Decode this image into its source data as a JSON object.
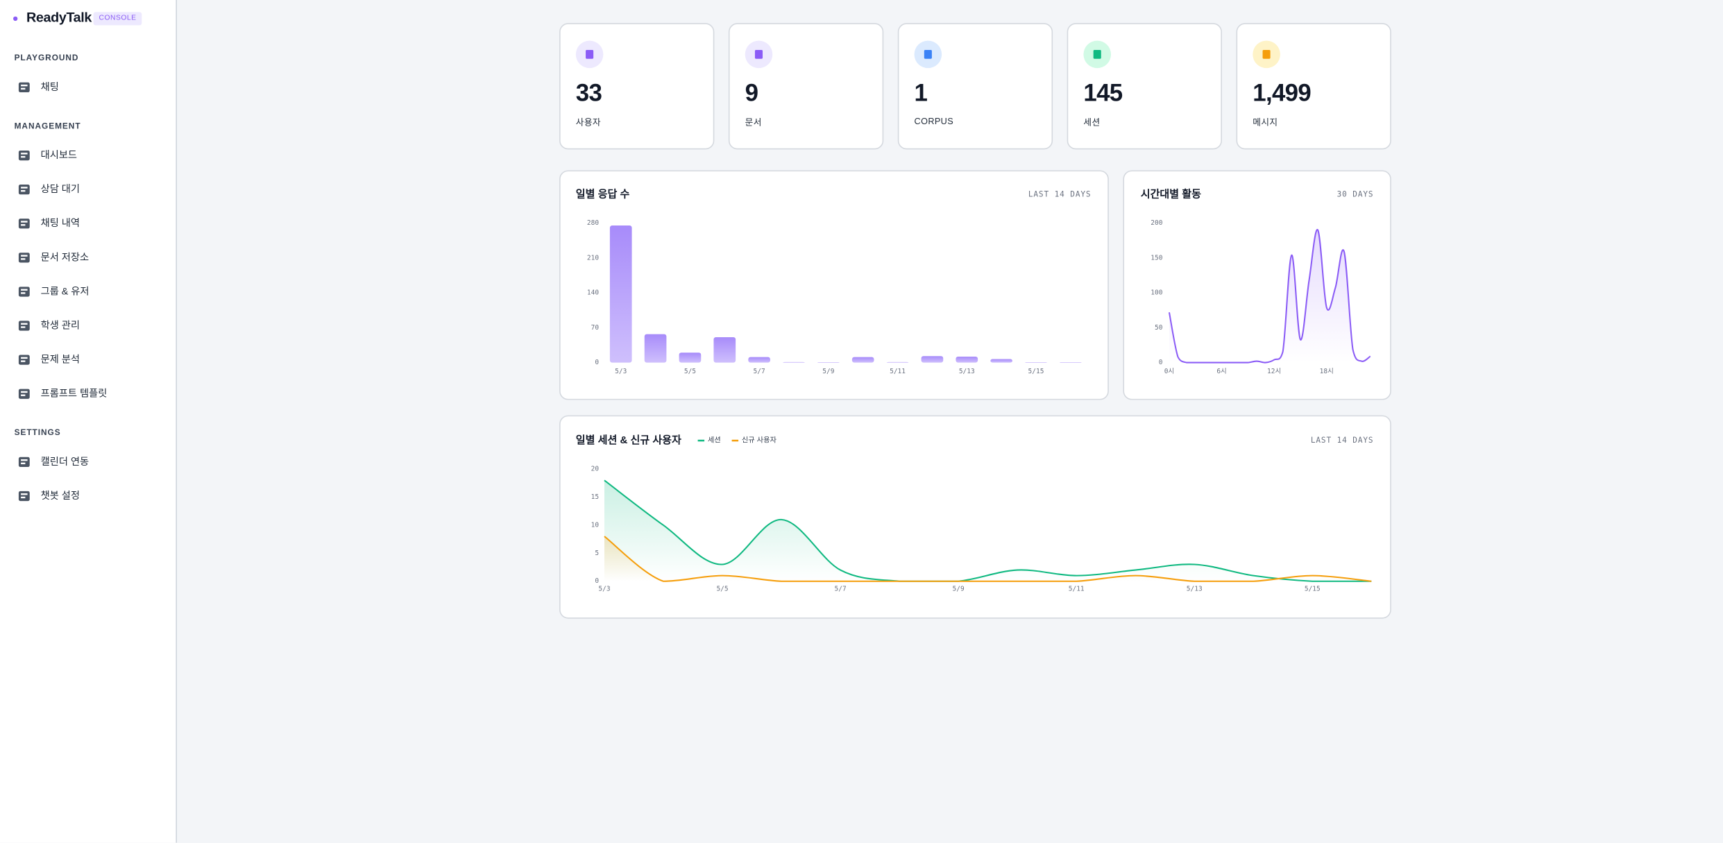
{
  "sidebar": {
    "brand": "ReadyTalk",
    "badge": "CONSOLE",
    "sections": [
      {
        "title": "PLAYGROUND",
        "items": [
          "채팅"
        ]
      },
      {
        "title": "MANAGEMENT",
        "items": [
          "대시보드",
          "상담 대기",
          "채팅 내역",
          "문서 저장소",
          "그룹 & 유저",
          "학생 관리",
          "문제 분석",
          "프롬프트 템플릿"
        ]
      },
      {
        "title": "SETTINGS",
        "items": [
          "캘린더 연동",
          "챗봇 설정"
        ]
      }
    ]
  },
  "stats": [
    {
      "value": "33",
      "label": "사용자"
    },
    {
      "value": "9",
      "label": "문서"
    },
    {
      "value": "1",
      "label": "CORPUS"
    },
    {
      "value": "145",
      "label": "세션"
    },
    {
      "value": "1,499",
      "label": "메시지"
    }
  ],
  "chart_data": [
    {
      "type": "bar",
      "title": "일별 응답 수",
      "subtitle": "LAST 14 DAYS",
      "categories": [
        "5/3",
        null,
        "5/5",
        null,
        "5/7",
        null,
        "5/9",
        null,
        "5/11",
        null,
        "5/13",
        null,
        "5/15",
        null
      ],
      "values": [
        275,
        57,
        20,
        51,
        11,
        1,
        0,
        11,
        1,
        13,
        12,
        7,
        0,
        0
      ],
      "color": "#a78bfa",
      "ylim": [
        0,
        280
      ],
      "yticks": [
        0,
        70,
        140,
        210,
        280
      ],
      "grid": false
    },
    {
      "type": "line",
      "title": "시간대별 활동",
      "subtitle": "30 DAYS",
      "categories": [
        "0시",
        null,
        null,
        null,
        null,
        null,
        "6시",
        null,
        null,
        null,
        null,
        null,
        "12시",
        null,
        null,
        null,
        null,
        null,
        "18시",
        null,
        null,
        null,
        null,
        null
      ],
      "values": [
        72,
        8,
        0,
        0,
        0,
        0,
        0,
        0,
        0,
        0,
        2,
        0,
        4,
        16,
        154,
        33,
        118,
        190,
        79,
        107,
        159,
        19,
        2,
        9
      ],
      "color": "#8b5cf6",
      "ylim": [
        0,
        200
      ],
      "yticks": [
        0,
        50,
        100,
        150,
        200
      ],
      "grid": false
    },
    {
      "type": "line",
      "title": "일별 세션 & 신규 사용자",
      "subtitle": "LAST 14 DAYS",
      "categories": [
        "5/3",
        null,
        "5/5",
        null,
        "5/7",
        null,
        "5/9",
        null,
        "5/11",
        null,
        "5/13",
        null,
        "5/15",
        null
      ],
      "series": [
        {
          "name": "세션",
          "color": "#10b981",
          "values": [
            18,
            10,
            3,
            11,
            2,
            0,
            0,
            2,
            1,
            2,
            3,
            1,
            0,
            0
          ]
        },
        {
          "name": "신규 사용자",
          "color": "#f59e0b",
          "values": [
            8,
            0,
            1,
            0,
            0,
            0,
            0,
            0,
            0,
            1,
            0,
            0,
            1,
            0
          ]
        }
      ],
      "ylim": [
        0,
        20
      ],
      "yticks": [
        0,
        5,
        10,
        15,
        20
      ],
      "grid": false,
      "legend": "top-left"
    }
  ]
}
